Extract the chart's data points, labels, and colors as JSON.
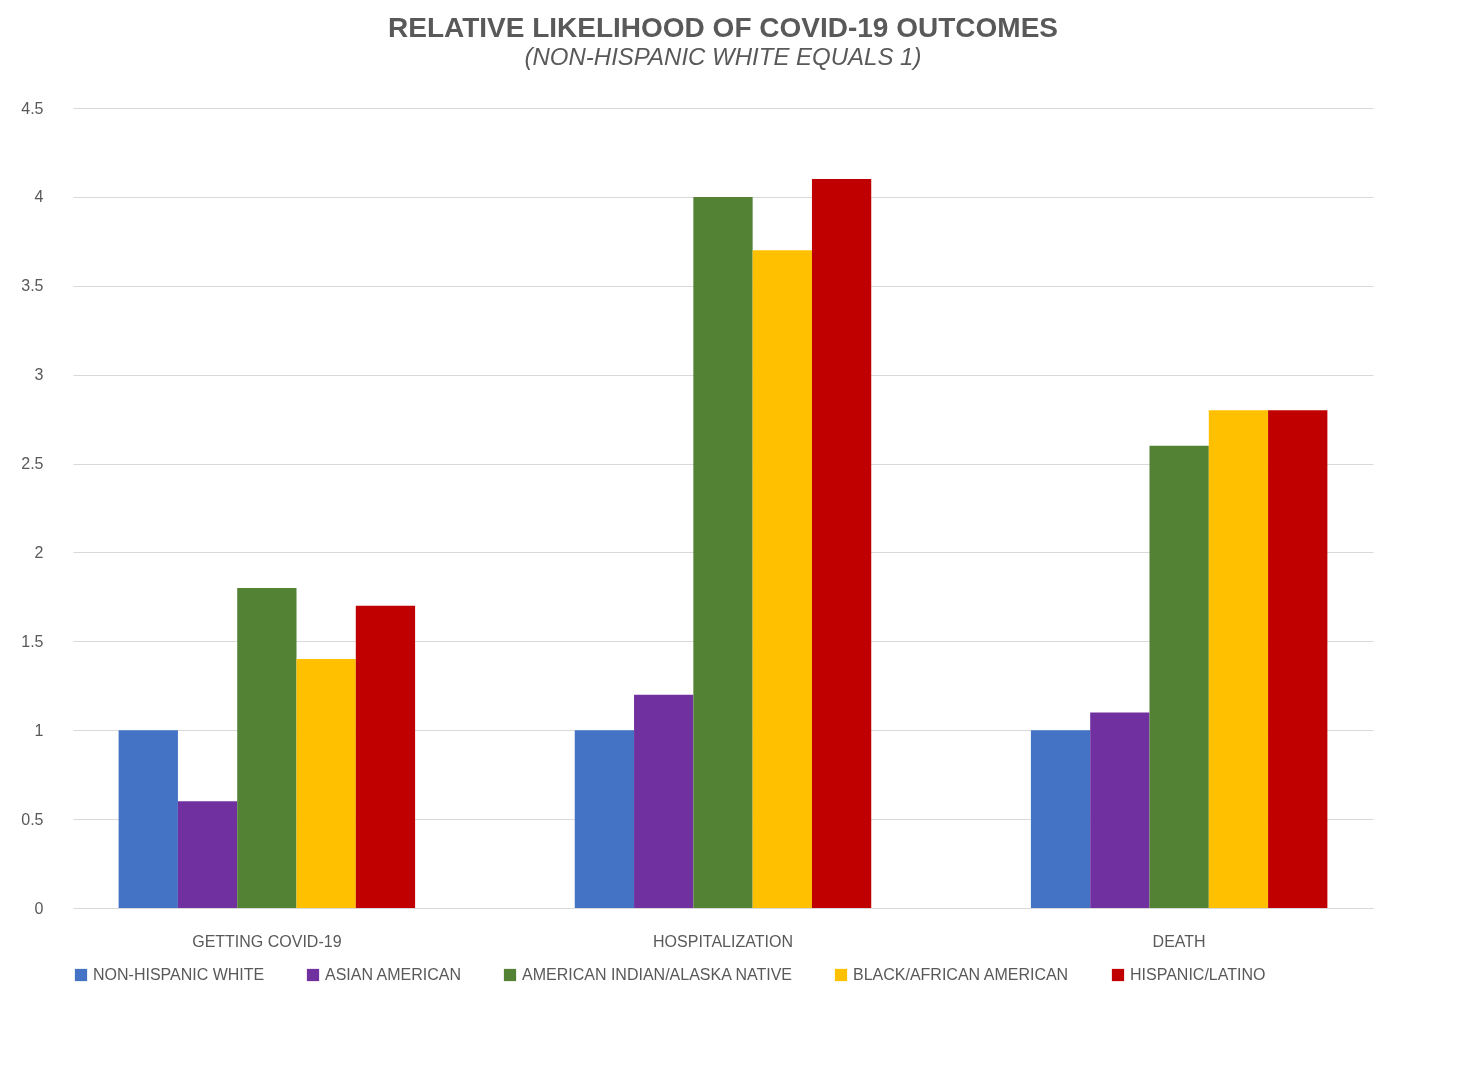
{
  "chart_data": {
    "type": "bar",
    "title": "RELATIVE LIKELIHOOD OF COVID-19 OUTCOMES",
    "subtitle": "(NON-HISPANIC WHITE EQUALS 1)",
    "categories": [
      "GETTING COVID-19",
      "HOSPITALIZATION",
      "DEATH"
    ],
    "series": [
      {
        "name": "NON-HISPANIC WHITE",
        "color": "#4472c4",
        "values": [
          1,
          1,
          1
        ]
      },
      {
        "name": "ASIAN AMERICAN",
        "color": "#7030a0",
        "values": [
          0.6,
          1.2,
          1.1
        ]
      },
      {
        "name": "AMERICAN INDIAN/ALASKA NATIVE",
        "color": "#548235",
        "values": [
          1.8,
          4.0,
          2.6
        ]
      },
      {
        "name": "BLACK/AFRICAN AMERICAN",
        "color": "#ffc000",
        "values": [
          1.4,
          3.7,
          2.8
        ]
      },
      {
        "name": "HISPANIC/LATINO",
        "color": "#c00000",
        "values": [
          1.7,
          4.1,
          2.8
        ]
      }
    ],
    "ylim": [
      0,
      4.5
    ],
    "yticks": [
      0,
      0.5,
      1,
      1.5,
      2,
      2.5,
      3,
      3.5,
      4,
      4.5
    ],
    "grid": true,
    "legend": "bottom"
  }
}
